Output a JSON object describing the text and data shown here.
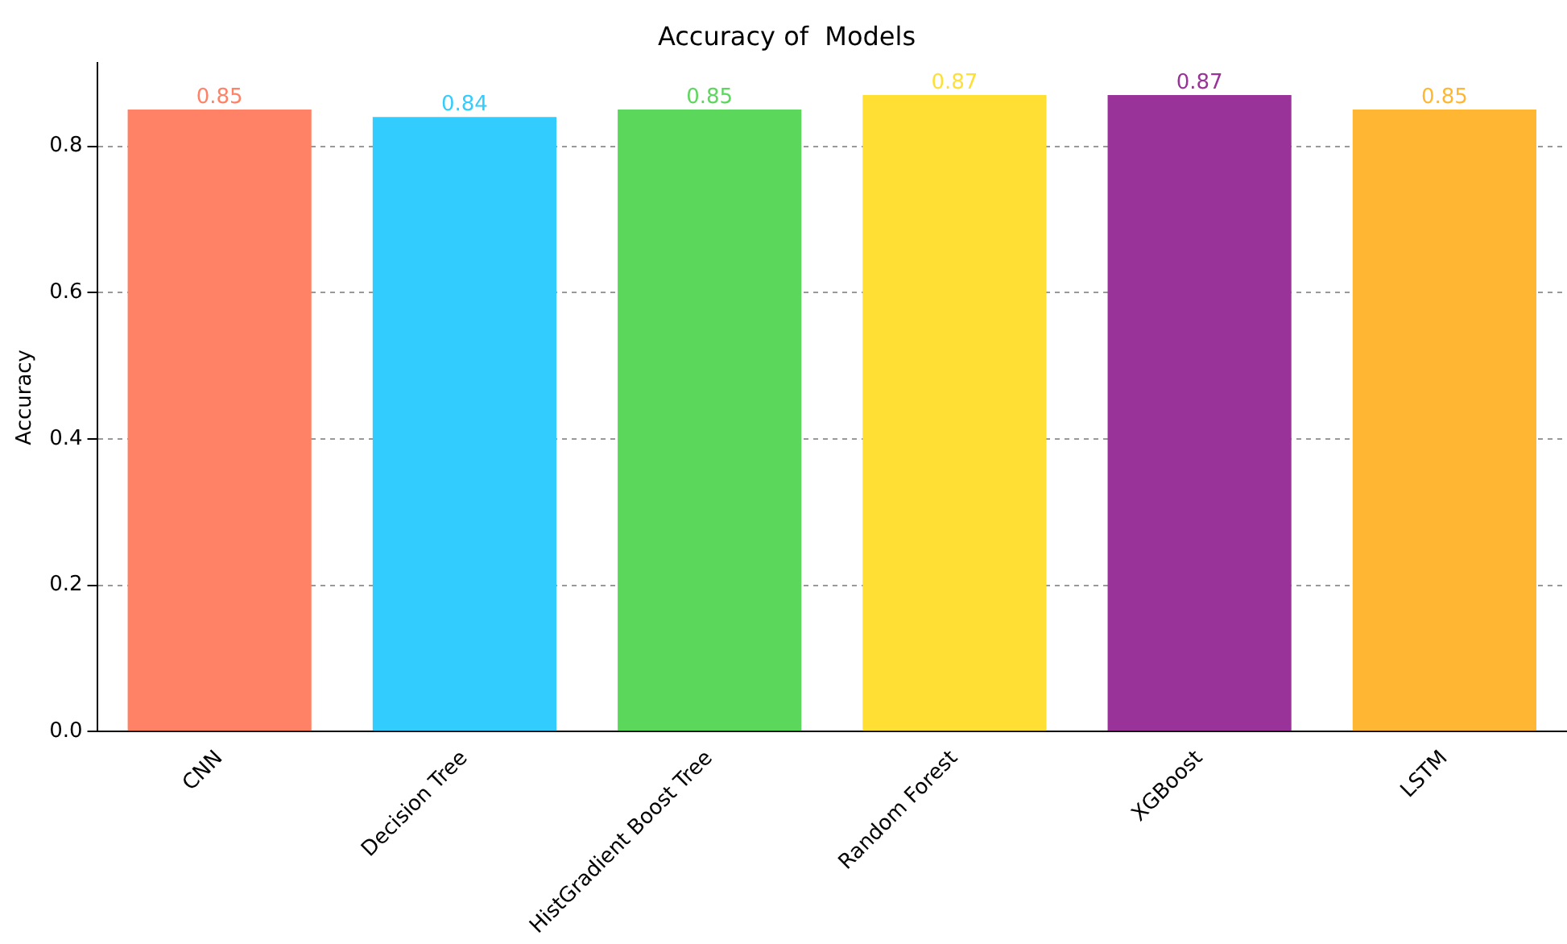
{
  "chart_data": {
    "type": "bar",
    "title": "Accuracy of  Models",
    "ylabel": "Accuracy",
    "categories": [
      "CNN",
      "Decision Tree",
      "HistGradient Boost Tree",
      "Random Forest",
      "XGBoost",
      "LSTM"
    ],
    "values": [
      0.85,
      0.84,
      0.85,
      0.87,
      0.87,
      0.85
    ],
    "colors": [
      "#ff8266",
      "#33ccff",
      "#5bd75b",
      "#ffdf33",
      "#993399",
      "#ffb733"
    ],
    "ylim": [
      0,
      0.9135
    ],
    "yticks": [
      {
        "value": 0,
        "label": "0.0"
      },
      {
        "value": 0.2,
        "label": "0.2"
      },
      {
        "value": 0.4,
        "label": "0.4"
      },
      {
        "value": 0.6,
        "label": "0.6"
      },
      {
        "value": 0.8,
        "label": "0.8"
      }
    ],
    "grid": "y",
    "legend": false,
    "data_labels": true
  }
}
